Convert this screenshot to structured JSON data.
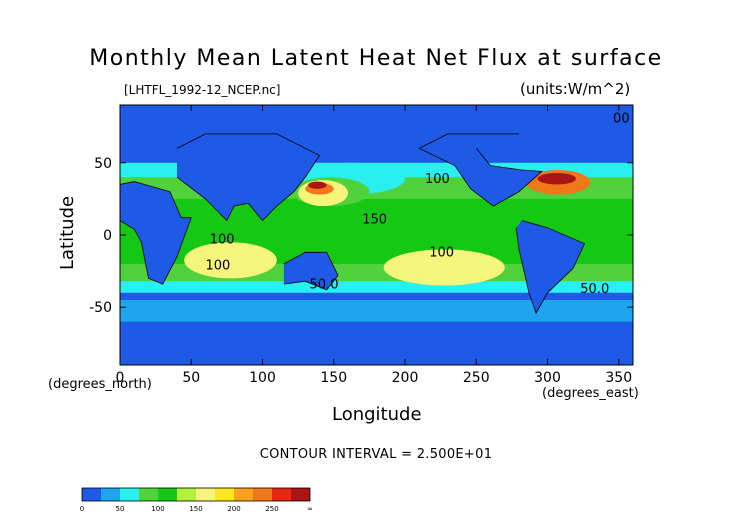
{
  "chart_data": {
    "type": "heatmap",
    "title": "Monthly Mean Latent Heat Net Flux at surface",
    "source_label": "[LHTFL_1992-12_NCEP.nc]",
    "units": "(units:W/m^2)",
    "xlabel": "Longitude",
    "ylabel": "Latitude",
    "x_unit_label": "(degrees_north)",
    "x_unit_label_2": "(degrees_east)",
    "xlim": [
      0,
      360
    ],
    "ylim": [
      -90,
      90
    ],
    "x_ticks": [
      0,
      50,
      100,
      150,
      200,
      250,
      300,
      350
    ],
    "y_ticks": [
      -50,
      0,
      50
    ],
    "contour_interval_text": "CONTOUR INTERVAL = 2.500E+01",
    "colorbar": {
      "ticks": [
        "0",
        "50",
        "100",
        "150",
        "200",
        "250",
        "∞"
      ],
      "tick_values": [
        0,
        50,
        100,
        150,
        200,
        250,
        300
      ],
      "levels": [
        0,
        25,
        50,
        75,
        100,
        125,
        150,
        175,
        200,
        225,
        250,
        275
      ],
      "colors": [
        "#1e5ae6",
        "#1ea5f0",
        "#28f0f0",
        "#50d23c",
        "#14c814",
        "#b4f03c",
        "#f5f57d",
        "#ffe61e",
        "#ffa01e",
        "#f07818",
        "#e62814",
        "#aa1414"
      ]
    },
    "contour_labels": [
      {
        "text": "100",
        "lon": 63,
        "lat": -6
      },
      {
        "text": "100",
        "lon": 60,
        "lat": -24
      },
      {
        "text": "150",
        "lon": 170,
        "lat": 8
      },
      {
        "text": "100",
        "lon": 217,
        "lat": -15
      },
      {
        "text": "50.0",
        "lon": 133,
        "lat": -37
      },
      {
        "text": "50.0",
        "lon": 323,
        "lat": -40
      },
      {
        "text": "00",
        "lon": 346,
        "lat": 78
      },
      {
        "text": "100",
        "lon": 214,
        "lat": 36
      }
    ],
    "regions": [
      {
        "name": "north-polar-band",
        "level": 0,
        "lon": [
          0,
          360
        ],
        "lat": [
          52,
          90
        ]
      },
      {
        "name": "north-pacific-cyan",
        "level": 2,
        "lon": [
          125,
          200
        ],
        "lat": [
          28,
          50
        ]
      },
      {
        "name": "north-pacific-green",
        "level": 3,
        "lon": [
          120,
          175
        ],
        "lat": [
          20,
          40
        ]
      },
      {
        "name": "kuroshio-yellow",
        "level": 6,
        "lon": [
          125,
          160
        ],
        "lat": [
          20,
          38
        ]
      },
      {
        "name": "kuroshio-orange",
        "level": 9,
        "lon": [
          130,
          150
        ],
        "lat": [
          28,
          36
        ]
      },
      {
        "name": "kuroshio-red",
        "level": 11,
        "lon": [
          132,
          145
        ],
        "lat": [
          32,
          37
        ]
      },
      {
        "name": "gulf-stream-orange",
        "level": 9,
        "lon": [
          285,
          330
        ],
        "lat": [
          28,
          45
        ]
      },
      {
        "name": "gulf-stream-red",
        "level": 11,
        "lon": [
          293,
          320
        ],
        "lat": [
          35,
          43
        ]
      },
      {
        "name": "tropical-indian-yellow",
        "level": 6,
        "lon": [
          45,
          110
        ],
        "lat": [
          -30,
          -5
        ]
      },
      {
        "name": "south-pacific-yellow",
        "level": 6,
        "lon": [
          185,
          270
        ],
        "lat": [
          -35,
          -10
        ]
      }
    ]
  }
}
